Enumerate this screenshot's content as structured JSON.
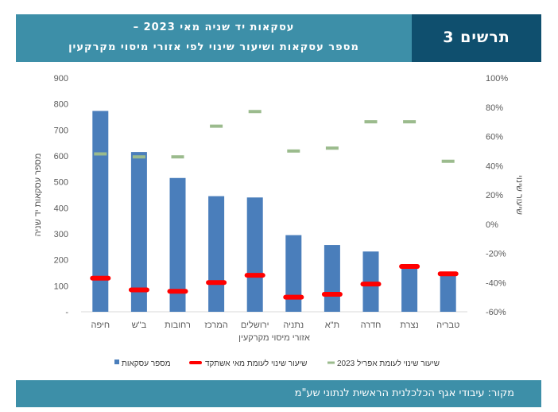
{
  "header": {
    "title_line1": "עסקאות יד שניה מאי 2023 –",
    "title_line2": "מספר עסקאות ושיעור שינוי לפי אזורי מיסוי מקרקעין",
    "figure_label": "תרשים 3"
  },
  "footer": {
    "source": "מקור: עיבודי אגף הכלכלנית הראשית לנתוני שע\"מ"
  },
  "colors": {
    "bars": "#4a7ebb",
    "may_change": "#ff0000",
    "april_change": "#9bbb8d",
    "header_light": "#3d8fa8",
    "header_dark": "#0f4f6e"
  },
  "chart_data": {
    "type": "bar",
    "categories": [
      "חיפה",
      "ב\"ש",
      "רחובות",
      "המרכז",
      "ירושלים",
      "נתניה",
      "ת\"א",
      "חדרה",
      "נצרת",
      "טבריה"
    ],
    "series": [
      {
        "name": "מספר עסקאות",
        "type": "bar",
        "axis": "left",
        "values": [
          773,
          615,
          515,
          445,
          440,
          295,
          257,
          232,
          180,
          145
        ]
      },
      {
        "name": "שיעור שינוי לעומת מאי אשתקד",
        "type": "marker",
        "axis": "right",
        "values": [
          -37,
          -45,
          -46,
          -40,
          -35,
          -50,
          -48,
          -41,
          -29,
          -34
        ]
      },
      {
        "name": "שיעור שינוי לעומת אפריל 2023",
        "type": "marker",
        "axis": "right",
        "values": [
          48,
          46,
          46,
          67,
          77,
          50,
          52,
          70,
          70,
          43
        ]
      }
    ],
    "y_left": {
      "label": "מספר עסקאות יד שניה",
      "ylim": [
        0,
        900
      ],
      "ticks": [
        "-",
        "100",
        "200",
        "300",
        "400",
        "500",
        "600",
        "700",
        "800",
        "900"
      ]
    },
    "y_right": {
      "label": "שיעור שינוי",
      "ylim": [
        -60,
        100
      ],
      "ticks": [
        "-60%",
        "-40%",
        "-20%",
        "0%",
        "20%",
        "40%",
        "60%",
        "80%",
        "100%"
      ]
    },
    "xlabel": "אזורי מיסוי מקרקעין",
    "grid": false,
    "legend_position": "bottom"
  }
}
